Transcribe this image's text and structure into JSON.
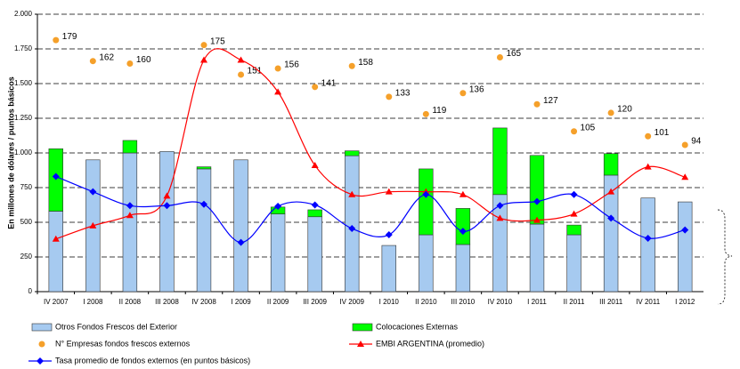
{
  "chart_data": {
    "type": "combo",
    "y_label": "En millones de dólares / puntos básicos",
    "categories": [
      "IV 2007",
      "I 2008",
      "II 2008",
      "III 2008",
      "IV 2008",
      "I 2009",
      "II 2009",
      "III 2009",
      "IV 2009",
      "I 2010",
      "II 2010",
      "III 2010",
      "IV 2010",
      "I 2011",
      "II 2011",
      "III 2011",
      "IV 2011",
      "I 2012"
    ],
    "ylim": [
      0,
      2000
    ],
    "yticks": [
      0,
      250,
      500,
      750,
      {
        "value": 1000,
        "label": "1.000"
      },
      {
        "value": 1250,
        "label": "1.250"
      },
      {
        "value": 1500,
        "label": "1.500"
      },
      {
        "value": 1750,
        "label": "1.750"
      },
      {
        "value": 2000,
        "label": "2.000"
      }
    ],
    "y2lim": [
      -25,
      200
    ],
    "grid": true,
    "stacked": true,
    "series": [
      {
        "name": "Otros Fondos Frescos del Exterior",
        "kind": "bar",
        "color": "#a6caf0",
        "values": [
          580,
          950,
          1000,
          1010,
          885,
          950,
          560,
          540,
          980,
          333,
          410,
          340,
          700,
          487,
          410,
          840,
          675,
          647
        ]
      },
      {
        "name": "Colocaciones Externas",
        "kind": "bar",
        "color": "#00ff00",
        "values": [
          450,
          0,
          90,
          0,
          15,
          0,
          50,
          50,
          35,
          0,
          475,
          260,
          480,
          495,
          70,
          155,
          0,
          0
        ]
      },
      {
        "name": "N° Empresas fondos frescos externos",
        "kind": "scatter",
        "axis": "y2",
        "color": "#f5a02a",
        "values": [
          179,
          162,
          160,
          null,
          175,
          151,
          156,
          141,
          158,
          133,
          119,
          136,
          165,
          127,
          105,
          120,
          101,
          94
        ]
      },
      {
        "name": "EMBI ARGENTINA (promedio)",
        "kind": "line",
        "marker": "triangle",
        "color": "#ff0000",
        "values": [
          380,
          475,
          550,
          690,
          1670,
          1670,
          1440,
          910,
          700,
          720,
          720,
          700,
          530,
          515,
          560,
          720,
          900,
          825
        ]
      },
      {
        "name": "Tasa promedio de fondos externos (en puntos básicos)",
        "kind": "line",
        "marker": "diamond",
        "color": "#0000ff",
        "values": [
          830,
          720,
          620,
          620,
          630,
          355,
          615,
          625,
          455,
          410,
          700,
          435,
          620,
          650,
          700,
          530,
          385,
          445
        ]
      }
    ]
  }
}
